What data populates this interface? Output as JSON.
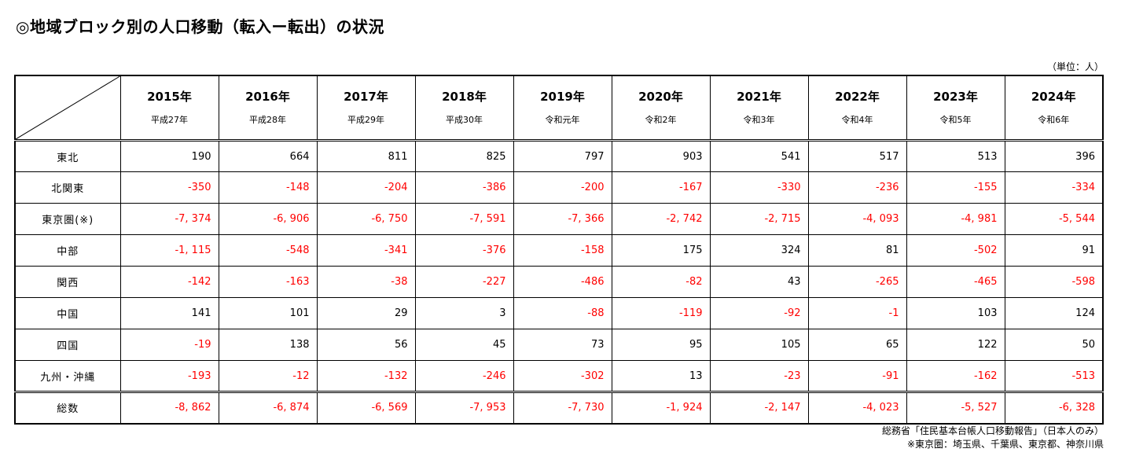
{
  "page": {
    "title": "◎地域ブロック別の人口移動（転入ー転出）の状況",
    "unit_label": "（単位：人）",
    "notes": [
      "総務省「住民基本台帳人口移動報告」（日本人のみ）",
      "※東京圏：埼玉県、千葉県、東京都、神奈川県"
    ]
  },
  "colors": {
    "negative_value": "#ff0000",
    "positive_value": "#000000",
    "border": "#000000",
    "background": "#ffffff"
  },
  "table": {
    "columns": [
      {
        "year": "2015年",
        "era": "平成27年"
      },
      {
        "year": "2016年",
        "era": "平成28年"
      },
      {
        "year": "2017年",
        "era": "平成29年"
      },
      {
        "year": "2018年",
        "era": "平成30年"
      },
      {
        "year": "2019年",
        "era": "令和元年"
      },
      {
        "year": "2020年",
        "era": "令和2年"
      },
      {
        "year": "2021年",
        "era": "令和3年"
      },
      {
        "year": "2022年",
        "era": "令和4年"
      },
      {
        "year": "2023年",
        "era": "令和5年"
      },
      {
        "year": "2024年",
        "era": "令和6年"
      }
    ],
    "rows": [
      {
        "label": "東北",
        "is_total": false,
        "values": [
          "190",
          "664",
          "811",
          "825",
          "797",
          "903",
          "541",
          "517",
          "513",
          "396"
        ]
      },
      {
        "label": "北関東",
        "is_total": false,
        "values": [
          "-350",
          "-148",
          "-204",
          "-386",
          "-200",
          "-167",
          "-330",
          "-236",
          "-155",
          "-334"
        ]
      },
      {
        "label": "東京圏(※)",
        "is_total": false,
        "values": [
          "-7, 374",
          "-6, 906",
          "-6, 750",
          "-7, 591",
          "-7, 366",
          "-2, 742",
          "-2, 715",
          "-4, 093",
          "-4, 981",
          "-5, 544"
        ]
      },
      {
        "label": "中部",
        "is_total": false,
        "values": [
          "-1, 115",
          "-548",
          "-341",
          "-376",
          "-158",
          "175",
          "324",
          "81",
          "-502",
          "91"
        ]
      },
      {
        "label": "関西",
        "is_total": false,
        "values": [
          "-142",
          "-163",
          "-38",
          "-227",
          "-486",
          "-82",
          "43",
          "-265",
          "-465",
          "-598"
        ]
      },
      {
        "label": "中国",
        "is_total": false,
        "values": [
          "141",
          "101",
          "29",
          "3",
          "-88",
          "-119",
          "-92",
          "-1",
          "103",
          "124"
        ]
      },
      {
        "label": "四国",
        "is_total": false,
        "values": [
          "-19",
          "138",
          "56",
          "45",
          "73",
          "95",
          "105",
          "65",
          "122",
          "50"
        ]
      },
      {
        "label": "九州・沖縄",
        "is_total": false,
        "values": [
          "-193",
          "-12",
          "-132",
          "-246",
          "-302",
          "13",
          "-23",
          "-91",
          "-162",
          "-513"
        ]
      },
      {
        "label": "総数",
        "is_total": true,
        "values": [
          "-8, 862",
          "-6, 874",
          "-6, 569",
          "-7, 953",
          "-7, 730",
          "-1, 924",
          "-2, 147",
          "-4, 023",
          "-5, 527",
          "-6, 328"
        ]
      }
    ]
  },
  "chart_data": {
    "type": "table",
    "title": "地域ブロック別の人口移動（転入ー転出）の状況",
    "unit": "人",
    "categories": [
      "2015",
      "2016",
      "2017",
      "2018",
      "2019",
      "2020",
      "2021",
      "2022",
      "2023",
      "2024"
    ],
    "series": [
      {
        "name": "東北",
        "values": [
          190,
          664,
          811,
          825,
          797,
          903,
          541,
          517,
          513,
          396
        ]
      },
      {
        "name": "北関東",
        "values": [
          -350,
          -148,
          -204,
          -386,
          -200,
          -167,
          -330,
          -236,
          -155,
          -334
        ]
      },
      {
        "name": "東京圏(※)",
        "values": [
          -7374,
          -6906,
          -6750,
          -7591,
          -7366,
          -2742,
          -2715,
          -4093,
          -4981,
          -5544
        ]
      },
      {
        "name": "中部",
        "values": [
          -1115,
          -548,
          -341,
          -376,
          -158,
          175,
          324,
          81,
          -502,
          91
        ]
      },
      {
        "name": "関西",
        "values": [
          -142,
          -163,
          -38,
          -227,
          -486,
          -82,
          43,
          -265,
          -465,
          -598
        ]
      },
      {
        "name": "中国",
        "values": [
          141,
          101,
          29,
          3,
          -88,
          -119,
          -92,
          -1,
          103,
          124
        ]
      },
      {
        "name": "四国",
        "values": [
          -19,
          138,
          56,
          45,
          73,
          95,
          105,
          65,
          122,
          50
        ]
      },
      {
        "name": "九州・沖縄",
        "values": [
          -193,
          -12,
          -132,
          -246,
          -302,
          13,
          -23,
          -91,
          -162,
          -513
        ]
      },
      {
        "name": "総数",
        "values": [
          -8862,
          -6874,
          -6569,
          -7953,
          -7730,
          -1924,
          -2147,
          -4023,
          -5527,
          -6328
        ]
      }
    ]
  }
}
